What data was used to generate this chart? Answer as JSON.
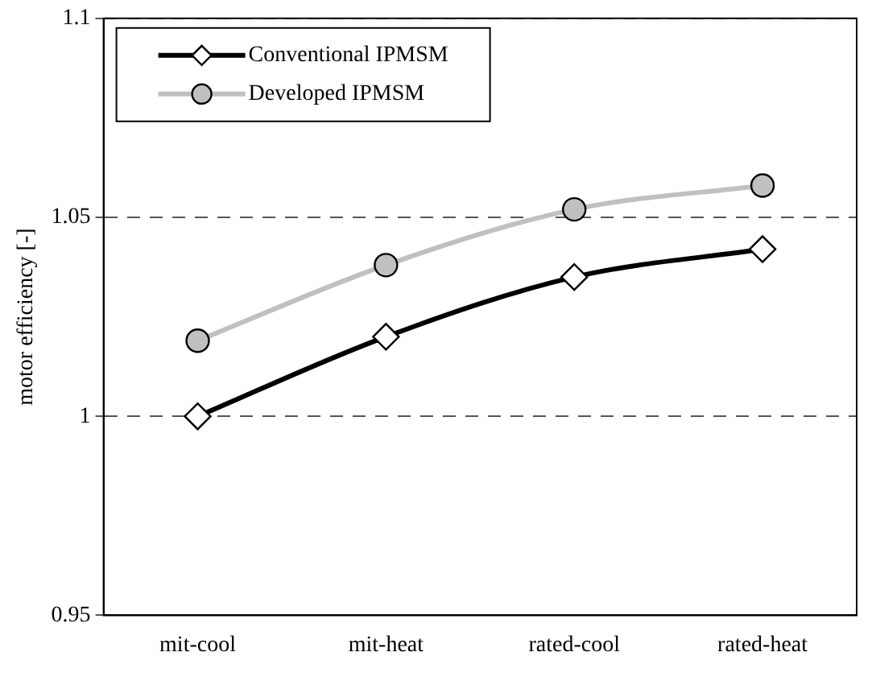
{
  "chart_data": {
    "type": "line",
    "ylabel": "motor efficiency [-]",
    "categories": [
      "mit-cool",
      "mit-heat",
      "rated-cool",
      "rated-heat"
    ],
    "series": [
      {
        "name": "Conventional IPMSM",
        "color": "#000000",
        "marker": "diamond",
        "values": [
          1.0,
          1.02,
          1.035,
          1.042
        ]
      },
      {
        "name": "Developed IPMSM",
        "color": "#c0c0c0",
        "marker": "circle",
        "values": [
          1.019,
          1.038,
          1.052,
          1.058
        ]
      }
    ],
    "ylim": [
      0.95,
      1.1
    ],
    "yticks": [
      0.95,
      1,
      1.05,
      1.1
    ],
    "grid": "y",
    "legend": "top left"
  }
}
